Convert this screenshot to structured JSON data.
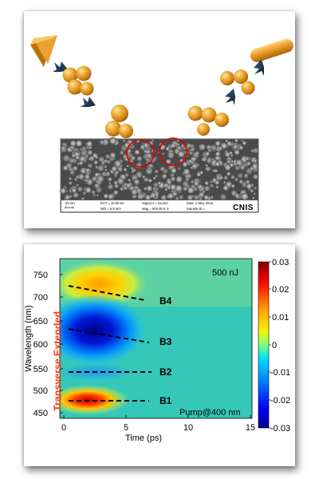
{
  "sem": {
    "scale_bar": "20 nm",
    "eht": "EHT = 10.00 kV",
    "wd": "WD = 6.9 mm",
    "signal": "Signal A = InLens",
    "mag": "Mag = 500.00 K X",
    "date": "Date :2 May 2016",
    "sample": "Sample ID =",
    "logo": "CNIS"
  },
  "plot": {
    "ylabel": "Wavelength (nm)",
    "xlabel": "Time (ps)",
    "yticks": [
      "750",
      "700",
      "650",
      "600",
      "550",
      "500",
      "450"
    ],
    "xticks": [
      "0",
      "5",
      "10",
      "15"
    ],
    "energy": "500 nJ",
    "pump": "Pump@400 nm",
    "extended": "Extended",
    "transverse": "Transverse",
    "bands": [
      "B4",
      "B3",
      "B2",
      "B1"
    ],
    "colorbar_ticks": [
      "0.03",
      "0.02",
      "0.01",
      "0",
      "-0.01",
      "-0.02",
      "-0.03"
    ],
    "colors": {
      "positive": "#c00000",
      "zero": "#35c8b8",
      "negative": "#00008a",
      "label": "#ff3b12",
      "particle": "#e59a22",
      "arrow": "#1f3b58"
    }
  }
}
